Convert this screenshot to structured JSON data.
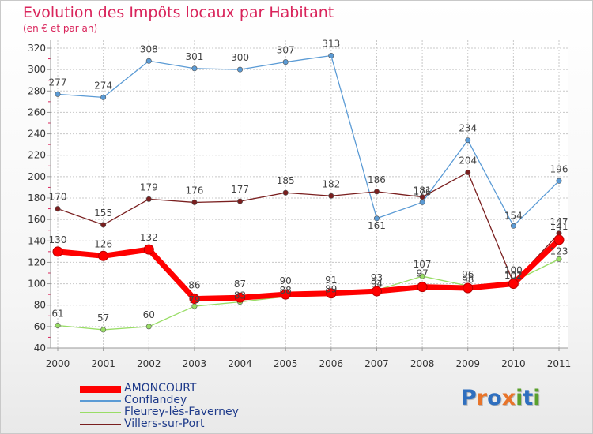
{
  "header": {
    "title": "Evolution des Impôts locaux par Habitant",
    "subtitle": "(en € et par an)"
  },
  "chart_data": {
    "type": "line",
    "title": "Evolution des Impôts locaux par Habitant",
    "subtitle": "(en € et par an)",
    "x": [
      "2000",
      "2001",
      "2002",
      "2003",
      "2004",
      "2005",
      "2006",
      "2007",
      "2008",
      "2009",
      "2010",
      "2011"
    ],
    "ylim": [
      40,
      320
    ],
    "yticks": [
      40,
      60,
      80,
      100,
      120,
      140,
      160,
      180,
      200,
      220,
      240,
      260,
      280,
      300,
      320
    ],
    "grid": true,
    "legend_position": "bottom-left",
    "series": [
      {
        "name": "AMONCOURT",
        "color": "#ff0000",
        "values": [
          130,
          126,
          132,
          86,
          87,
          90,
          91,
          93,
          97,
          96,
          100,
          141
        ],
        "labels": [
          "130",
          "126",
          "132",
          "86",
          "87",
          "90",
          "91",
          "93",
          "97",
          "96",
          "100",
          "141"
        ]
      },
      {
        "name": "Conflandey",
        "color": "#5b9bd5",
        "values": [
          277,
          274,
          308,
          301,
          300,
          307,
          313,
          161,
          176,
          234,
          154,
          196
        ],
        "labels": [
          "277",
          "274",
          "308",
          "301",
          "300",
          "307",
          "313",
          "161",
          "176",
          "234",
          "154",
          "196"
        ]
      },
      {
        "name": "Fleurey-lès-Faverney",
        "color": "#99dd66",
        "values": [
          61,
          57,
          60,
          79,
          83,
          88,
          89,
          94,
          107,
          98,
          102,
          123
        ],
        "labels": [
          "61",
          "57",
          "60",
          "79",
          "83",
          "88",
          "89",
          "94",
          "107",
          "98",
          "102",
          "123"
        ]
      },
      {
        "name": "Villers-sur-Port",
        "color": "#7a1f1f",
        "values": [
          170,
          155,
          179,
          176,
          177,
          185,
          182,
          186,
          181,
          204,
          101,
          147
        ],
        "labels": [
          "170",
          "155",
          "179",
          "176",
          "177",
          "185",
          "182",
          "186",
          "181",
          "204",
          "101",
          "147"
        ]
      }
    ]
  },
  "logo": {
    "letters": [
      "P",
      "r",
      "o",
      "x",
      "i",
      "t",
      "i"
    ]
  }
}
